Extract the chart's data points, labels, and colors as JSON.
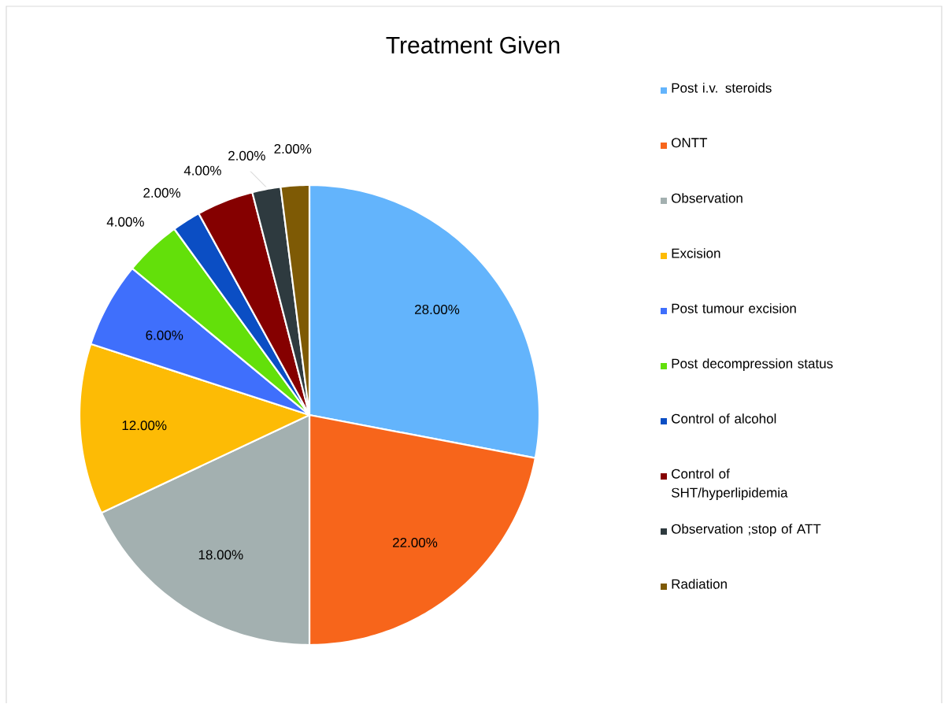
{
  "chart_data": {
    "type": "pie",
    "title": "Treatment Given",
    "categories": [
      "Post i.v. steroids",
      "ONTT",
      "Observation",
      "Excision",
      "Post  tumour excision",
      "Post decompression status",
      "Control of alcohol",
      "Control of SHT/hyperlipidemia",
      "Observation ;stop of ATT",
      "Radiation"
    ],
    "values": [
      28,
      22,
      18,
      12,
      6,
      4,
      2,
      4,
      2,
      2
    ],
    "colors": [
      "#63b4fc",
      "#f7651b",
      "#a3b0b0",
      "#fdbb05",
      "#3f6ffc",
      "#63e00a",
      "#0b4ec4",
      "#850000",
      "#2e3a3f",
      "#7e5a05"
    ],
    "value_labels": [
      "28.00%",
      "22.00%",
      "18.00%",
      "12.00%",
      "6.00%",
      "4.00%",
      "2.00%",
      "4.00%",
      "2.00%",
      "2.00%"
    ],
    "legend": "right"
  }
}
